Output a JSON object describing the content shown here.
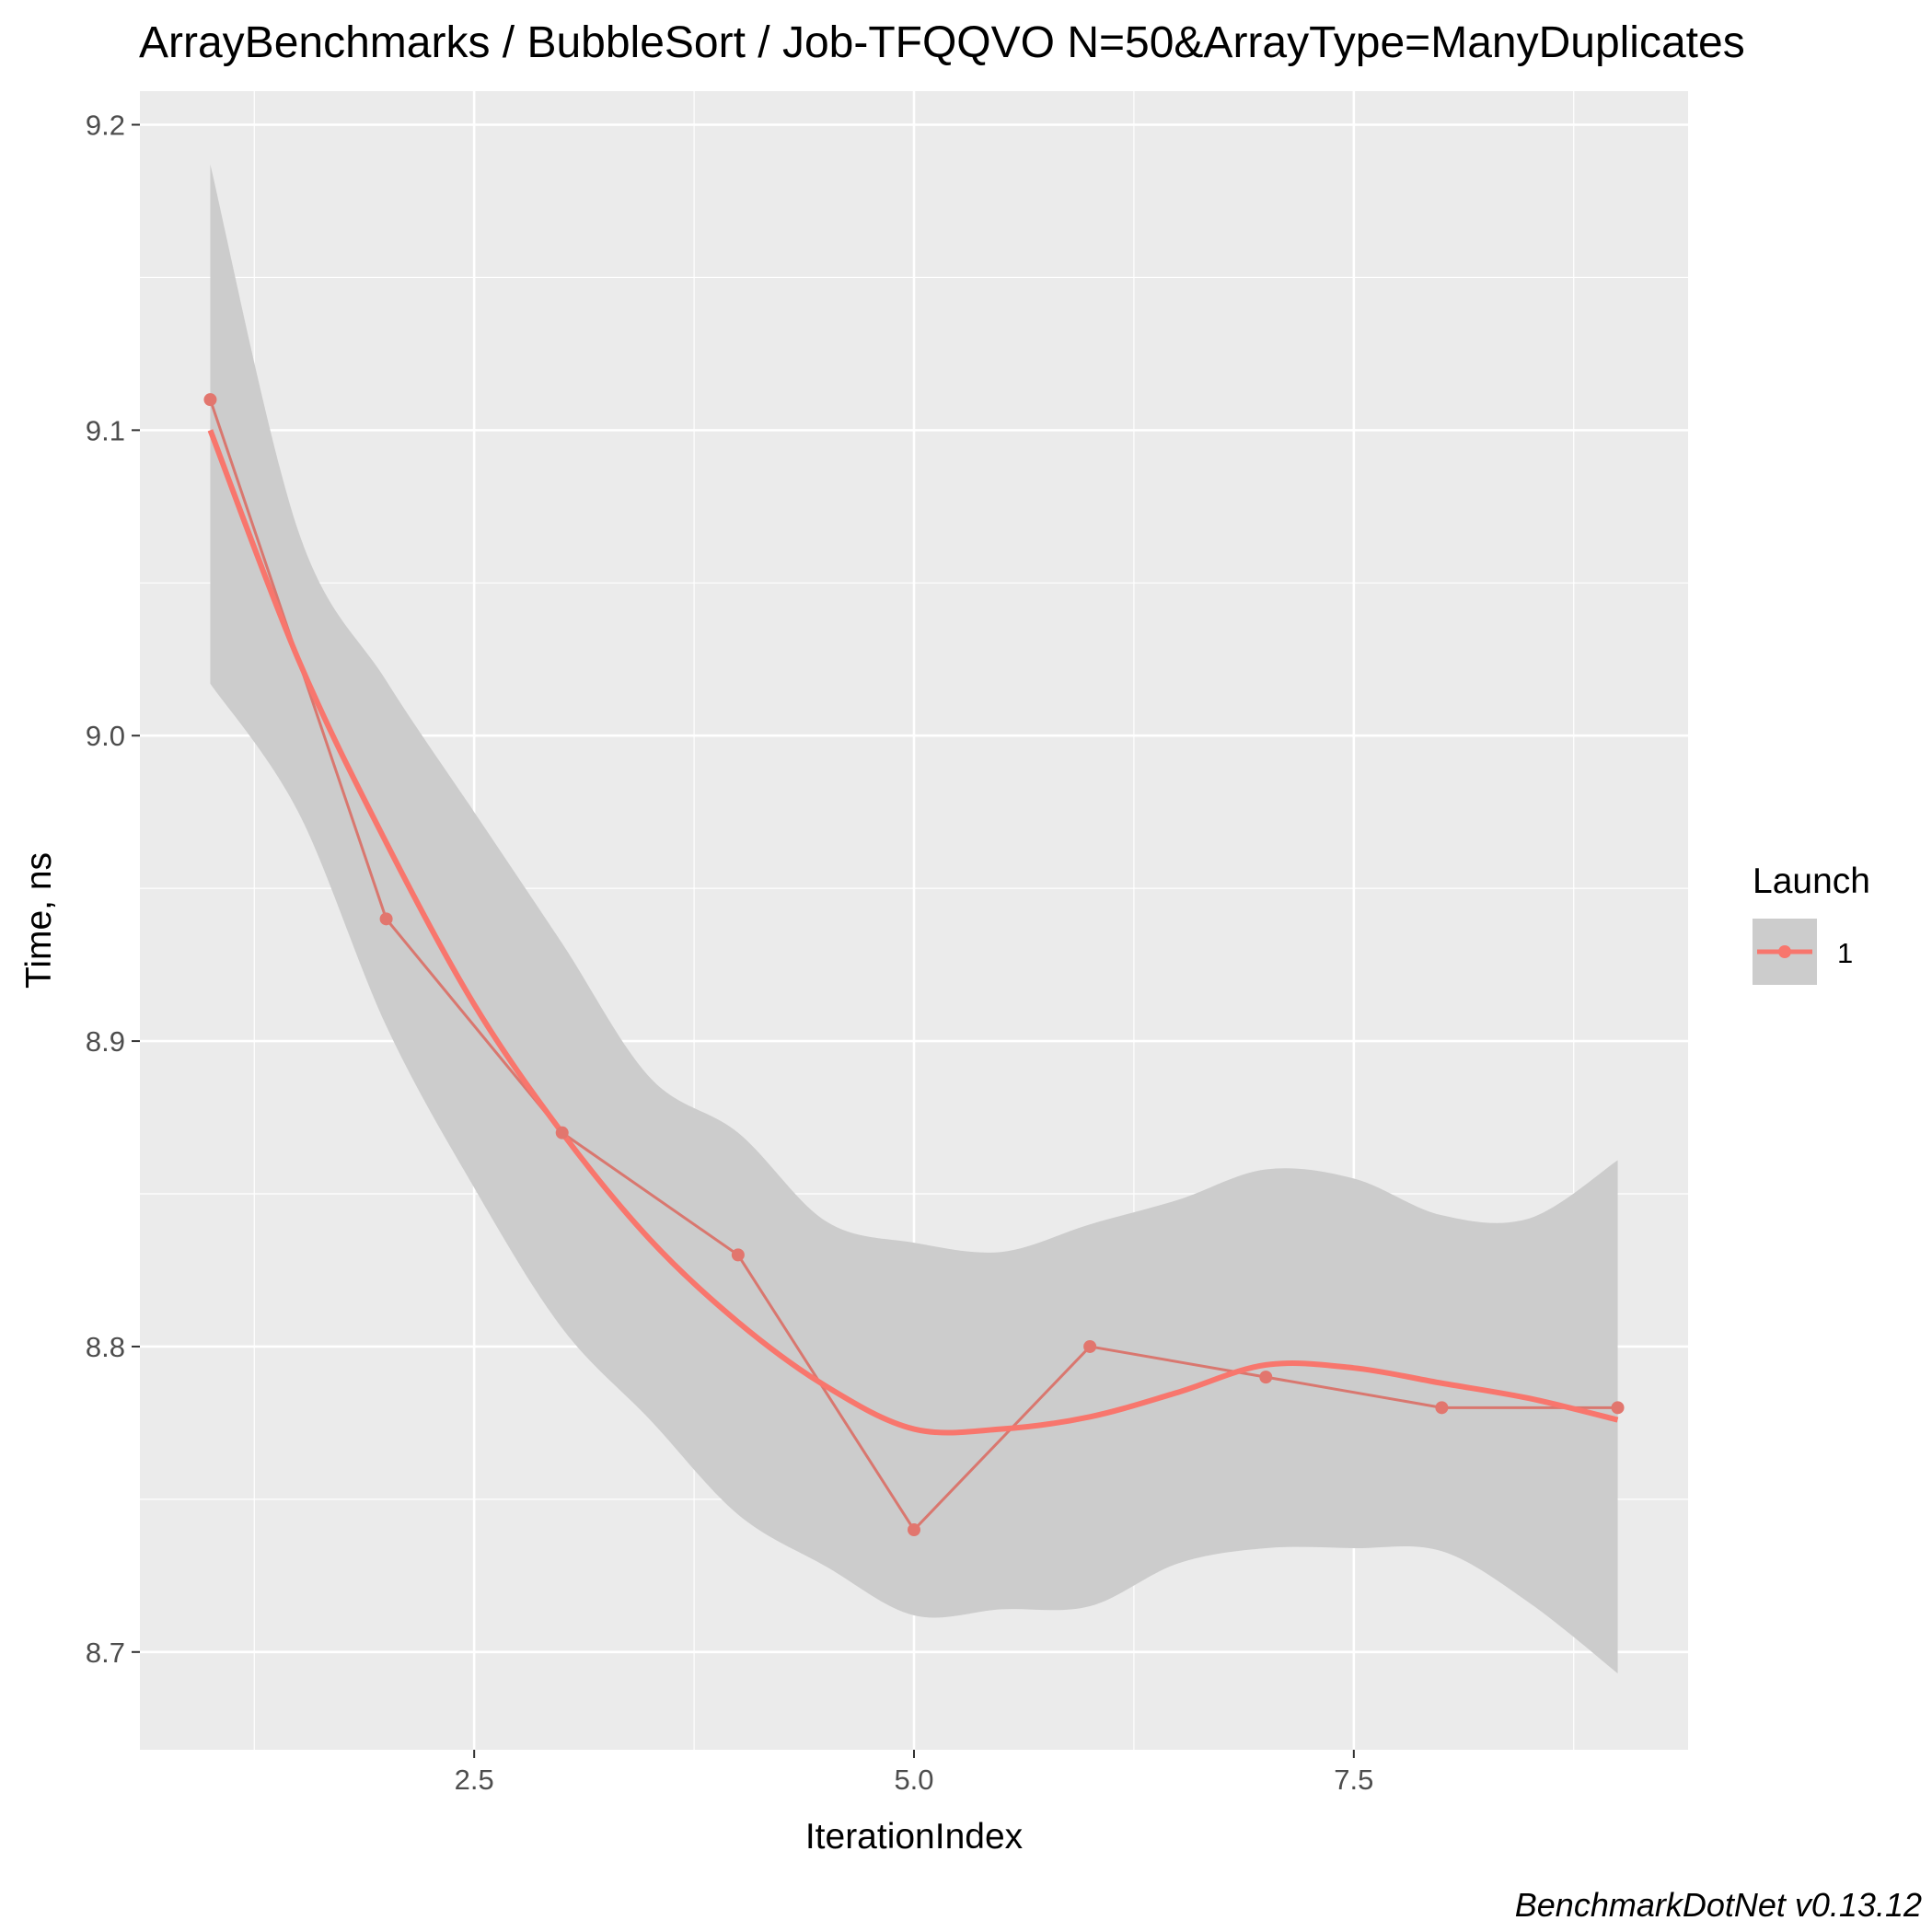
{
  "chart_data": {
    "type": "line",
    "title": "ArrayBenchmarks / BubbleSort / Job-TFQQVO N=50&ArrayType=ManyDuplicates",
    "xlabel": "IterationIndex",
    "ylabel": "Time, ns",
    "xlim": [
      0.6,
      9.4
    ],
    "ylim": [
      8.668,
      9.211
    ],
    "x_ticks": [
      2.5,
      5.0,
      7.5
    ],
    "x_tick_labels": [
      "2.5",
      "5.0",
      "7.5"
    ],
    "y_ticks": [
      8.7,
      8.8,
      8.9,
      9.0,
      9.1,
      9.2
    ],
    "y_tick_labels": [
      "8.7",
      "8.8",
      "8.9",
      "9.0",
      "9.1",
      "9.2"
    ],
    "grid": true,
    "legend": {
      "title": "Launch",
      "position": "right",
      "entries": [
        "1"
      ]
    },
    "caption": "BenchmarkDotNet v0.13.12",
    "series": [
      {
        "name": "1",
        "color": "#F8766D",
        "x": [
          1,
          2,
          3,
          4,
          5,
          6,
          7,
          8,
          9
        ],
        "values": [
          9.11,
          8.94,
          8.87,
          8.83,
          8.74,
          8.8,
          8.79,
          8.78,
          8.78
        ]
      }
    ],
    "smooth": {
      "color": "#F8766D",
      "band_color": "#cccccc",
      "x": [
        1.0,
        1.5,
        2.0,
        2.5,
        3.0,
        3.5,
        4.0,
        4.5,
        5.0,
        5.5,
        6.0,
        6.5,
        7.0,
        7.5,
        8.0,
        8.5,
        9.0
      ],
      "fit": [
        9.1,
        9.025,
        8.965,
        8.912,
        8.87,
        8.835,
        8.808,
        8.787,
        8.773,
        8.773,
        8.777,
        8.785,
        8.794,
        8.793,
        8.788,
        8.783,
        8.776
      ],
      "lower": [
        9.017,
        8.975,
        8.905,
        8.852,
        8.806,
        8.776,
        8.745,
        8.728,
        8.712,
        8.714,
        8.715,
        8.729,
        8.734,
        8.734,
        8.733,
        8.716,
        8.693
      ],
      "upper": [
        9.187,
        9.067,
        9.018,
        8.975,
        8.932,
        8.888,
        8.87,
        8.841,
        8.834,
        8.831,
        8.84,
        8.848,
        8.858,
        8.855,
        8.843,
        8.842,
        8.861
      ]
    }
  }
}
